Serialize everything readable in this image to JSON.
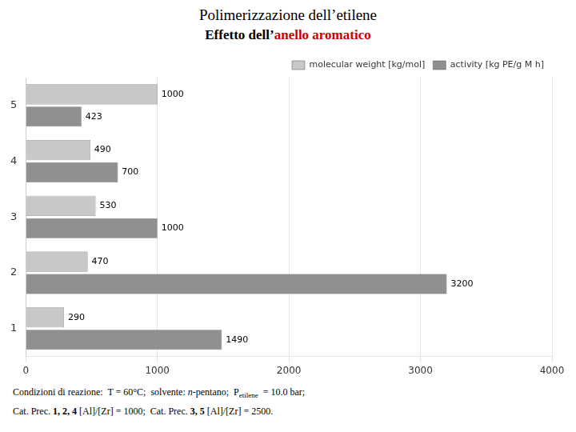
{
  "chart_data": {
    "type": "bar",
    "orientation": "horizontal",
    "title": "Polimerizzazione dell’etilene",
    "subtitle": [
      {
        "text": "Effetto dell’",
        "color": "#000000"
      },
      {
        "text": "anello aromatico",
        "color": "#cc0000"
      }
    ],
    "categories": [
      "1",
      "2",
      "3",
      "4",
      "5"
    ],
    "series": [
      {
        "name": "molecular weight [kg/mol]",
        "color": "#c8c8c8",
        "values": [
          290,
          470,
          530,
          490,
          1000
        ]
      },
      {
        "name": "activity [kg PE/g M h]",
        "color": "#909090",
        "values": [
          1490,
          3200,
          1000,
          700,
          423
        ]
      }
    ],
    "xlim": [
      0,
      4000
    ],
    "xticks": [
      0,
      1000,
      2000,
      3000,
      4000
    ],
    "grid": true,
    "legend": "upper right",
    "data_labels": true,
    "annotations": [
      [
        {
          "text": "Condizioni di reazione:  T = 60°C;  solvente: ",
          "style": "normal"
        },
        {
          "text": "n",
          "style": "italic"
        },
        {
          "text": "-pentano;  P",
          "style": "normal"
        },
        {
          "text": "etilene",
          "style": "subscript"
        },
        {
          "text": "  = 10.0 bar;",
          "style": "normal"
        }
      ],
      [
        {
          "text": "Cat. Prec. ",
          "style": "normal"
        },
        {
          "text": "1, 2, 4",
          "style": "bold"
        },
        {
          "text": " [Al]/[Zr] = 1000;  Cat. Prec. ",
          "style": "normal"
        },
        {
          "text": "3, 5",
          "style": "bold"
        },
        {
          "text": " [Al]/[Zr] = 2500.",
          "style": "normal"
        }
      ]
    ]
  }
}
